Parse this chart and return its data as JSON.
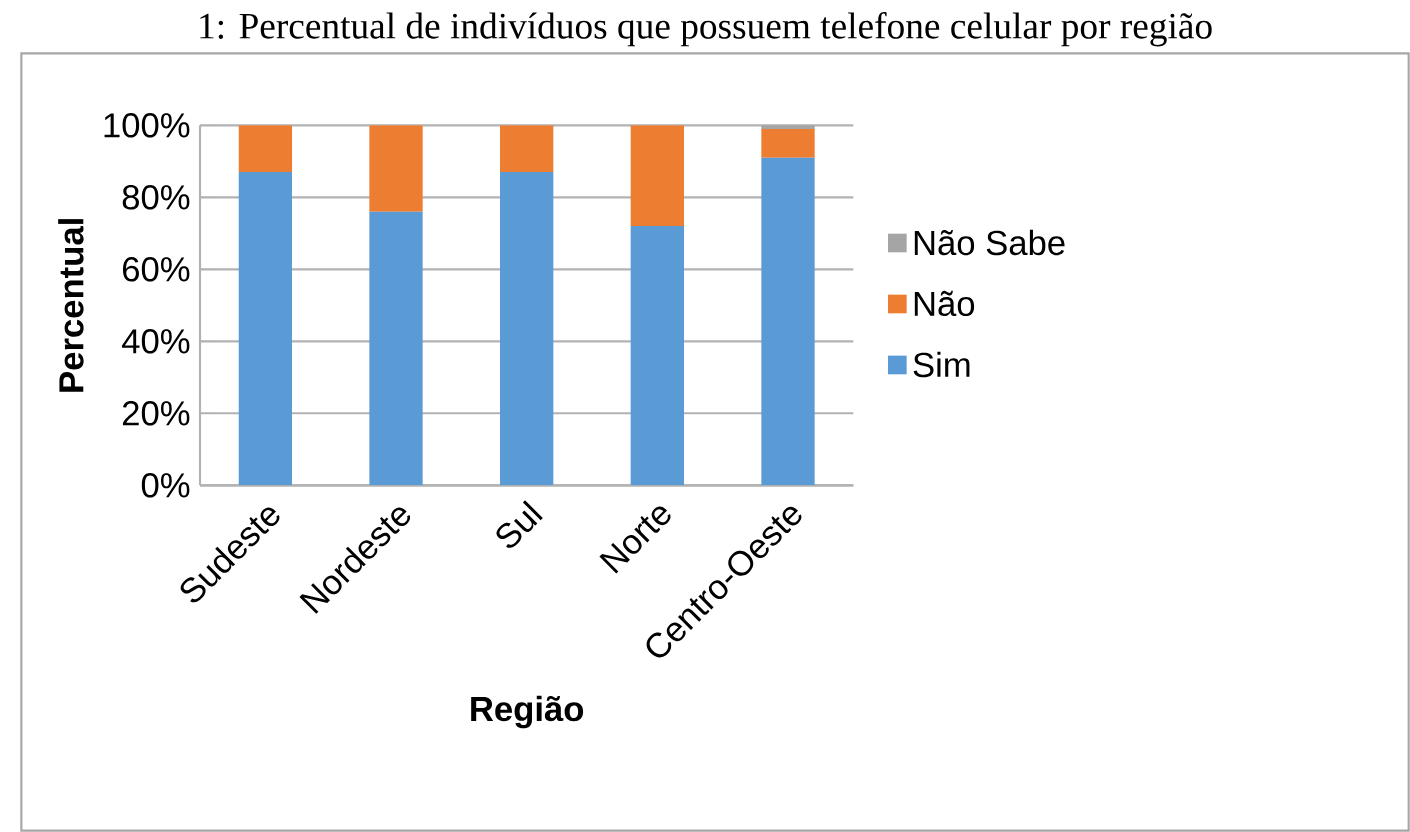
{
  "chart_data": {
    "type": "bar",
    "stacked": true,
    "title": "1: Percentual de indivíduos que possuem telefone celular por região",
    "xlabel": "Região",
    "ylabel": "Percentual",
    "categories": [
      "Sudeste",
      "Nordeste",
      "Sul",
      "Norte",
      "Centro-Oeste"
    ],
    "series": [
      {
        "name": "Sim",
        "color": "#5b9bd5",
        "values": [
          87,
          76,
          87,
          72,
          91
        ]
      },
      {
        "name": "Não",
        "color": "#ed7d31",
        "values": [
          13,
          24,
          13,
          28,
          8
        ]
      },
      {
        "name": "Não Sabe",
        "color": "#a5a5a5",
        "values": [
          0,
          0,
          0,
          0,
          1
        ]
      }
    ],
    "ylim": [
      0,
      100
    ],
    "yticks": [
      {
        "value": 0,
        "label": "0%"
      },
      {
        "value": 20,
        "label": "20%"
      },
      {
        "value": 40,
        "label": "40%"
      },
      {
        "value": 60,
        "label": "60%"
      },
      {
        "value": 80,
        "label": "80%"
      },
      {
        "value": 100,
        "label": "100%"
      }
    ],
    "grid": "y",
    "legend": "right"
  }
}
